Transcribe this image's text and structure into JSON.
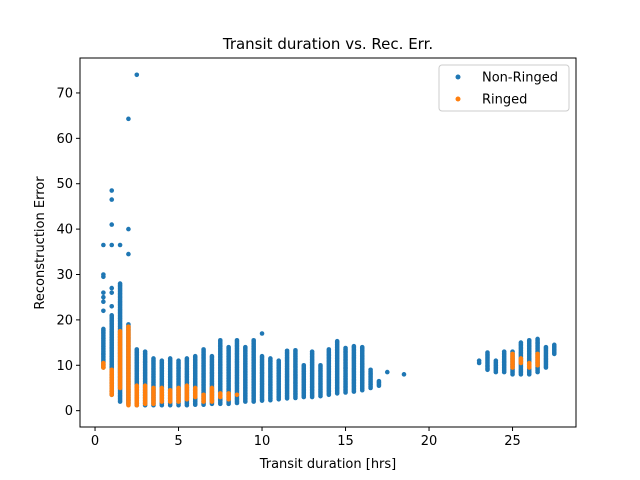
{
  "chart_data": {
    "type": "scatter",
    "title": "Transit duration vs. Rec. Err.",
    "xlabel": "Transit duration [hrs]",
    "ylabel": "Reconstruction Error",
    "xlim": [
      -0.9,
      28.8
    ],
    "ylim": [
      -3.6,
      77.7
    ],
    "xticks": [
      0,
      5,
      10,
      15,
      20,
      25
    ],
    "yticks": [
      0,
      10,
      20,
      30,
      40,
      50,
      60,
      70
    ],
    "grid": false,
    "legend_position": "top-right",
    "series": [
      {
        "name": "Non-Ringed",
        "color": "#1f77b4",
        "columns": [
          {
            "x": 0.5,
            "ymin": 9.5,
            "ymax": 18,
            "outliers": [
              22,
              24,
              25,
              26,
              29.5,
              30,
              36.5
            ]
          },
          {
            "x": 1.0,
            "ymin": 3.5,
            "ymax": 21,
            "outliers": [
              23,
              26,
              27,
              36.5,
              41,
              46.5,
              48.5
            ]
          },
          {
            "x": 1.5,
            "ymin": 2.0,
            "ymax": 28,
            "outliers": [
              36.5
            ]
          },
          {
            "x": 2.0,
            "ymin": 1.5,
            "ymax": 19,
            "outliers": [
              34.5,
              40,
              64.3
            ]
          },
          {
            "x": 2.5,
            "ymin": 1.2,
            "ymax": 13.5,
            "outliers": [
              74
            ]
          },
          {
            "x": 3.0,
            "ymin": 1.2,
            "ymax": 13,
            "outliers": []
          },
          {
            "x": 3.5,
            "ymin": 1.2,
            "ymax": 11.5,
            "outliers": []
          },
          {
            "x": 4.0,
            "ymin": 1.2,
            "ymax": 11,
            "outliers": []
          },
          {
            "x": 4.5,
            "ymin": 1.2,
            "ymax": 11.5,
            "outliers": []
          },
          {
            "x": 5.0,
            "ymin": 1.2,
            "ymax": 11,
            "outliers": []
          },
          {
            "x": 5.5,
            "ymin": 1.2,
            "ymax": 11.5,
            "outliers": []
          },
          {
            "x": 6.0,
            "ymin": 1.3,
            "ymax": 12,
            "outliers": []
          },
          {
            "x": 6.5,
            "ymin": 1.3,
            "ymax": 13.5,
            "outliers": []
          },
          {
            "x": 7.0,
            "ymin": 1.5,
            "ymax": 12,
            "outliers": []
          },
          {
            "x": 7.5,
            "ymin": 1.5,
            "ymax": 15.5,
            "outliers": []
          },
          {
            "x": 8.0,
            "ymin": 1.5,
            "ymax": 14,
            "outliers": []
          },
          {
            "x": 8.5,
            "ymin": 1.7,
            "ymax": 15.5,
            "outliers": []
          },
          {
            "x": 9.0,
            "ymin": 2.0,
            "ymax": 14,
            "outliers": []
          },
          {
            "x": 9.5,
            "ymin": 2.0,
            "ymax": 15.5,
            "outliers": []
          },
          {
            "x": 10.0,
            "ymin": 2.2,
            "ymax": 12,
            "outliers": [
              17
            ]
          },
          {
            "x": 10.5,
            "ymin": 2.3,
            "ymax": 11.5,
            "outliers": []
          },
          {
            "x": 11.0,
            "ymin": 2.5,
            "ymax": 11,
            "outliers": []
          },
          {
            "x": 11.5,
            "ymin": 2.7,
            "ymax": 13.2,
            "outliers": []
          },
          {
            "x": 12.0,
            "ymin": 2.8,
            "ymax": 13.3,
            "outliers": []
          },
          {
            "x": 12.5,
            "ymin": 3.0,
            "ymax": 10,
            "outliers": []
          },
          {
            "x": 13.0,
            "ymin": 3.0,
            "ymax": 13,
            "outliers": []
          },
          {
            "x": 13.5,
            "ymin": 3.2,
            "ymax": 10,
            "outliers": []
          },
          {
            "x": 14.0,
            "ymin": 3.5,
            "ymax": 13.5,
            "outliers": []
          },
          {
            "x": 14.5,
            "ymin": 3.8,
            "ymax": 15.3,
            "outliers": []
          },
          {
            "x": 15.0,
            "ymin": 4.0,
            "ymax": 13.8,
            "outliers": []
          },
          {
            "x": 15.5,
            "ymin": 4.2,
            "ymax": 14.2,
            "outliers": []
          },
          {
            "x": 16.0,
            "ymin": 4.5,
            "ymax": 14,
            "outliers": []
          },
          {
            "x": 16.5,
            "ymin": 5.0,
            "ymax": 9,
            "outliers": []
          },
          {
            "x": 17.0,
            "ymin": 5.5,
            "ymax": 6.5,
            "outliers": []
          },
          {
            "x": 17.5,
            "ymin": 8.5,
            "ymax": 8.5,
            "outliers": []
          },
          {
            "x": 18.5,
            "ymin": 8.0,
            "ymax": 8.0,
            "outliers": []
          },
          {
            "x": 23.0,
            "ymin": 10.5,
            "ymax": 11,
            "outliers": []
          },
          {
            "x": 23.5,
            "ymin": 9.0,
            "ymax": 12.8,
            "outliers": []
          },
          {
            "x": 24.0,
            "ymin": 8.5,
            "ymax": 11,
            "outliers": []
          },
          {
            "x": 24.5,
            "ymin": 8.5,
            "ymax": 13,
            "outliers": []
          },
          {
            "x": 25.0,
            "ymin": 8.0,
            "ymax": 13,
            "outliers": []
          },
          {
            "x": 25.5,
            "ymin": 8.0,
            "ymax": 15,
            "outliers": []
          },
          {
            "x": 26.0,
            "ymin": 8.0,
            "ymax": 15.5,
            "outliers": []
          },
          {
            "x": 26.5,
            "ymin": 8.5,
            "ymax": 15.8,
            "outliers": []
          },
          {
            "x": 27.0,
            "ymin": 9.5,
            "ymax": 14,
            "outliers": []
          },
          {
            "x": 27.5,
            "ymin": 12.5,
            "ymax": 14.5,
            "outliers": []
          }
        ]
      },
      {
        "name": "Ringed",
        "color": "#ff7f0e",
        "columns": [
          {
            "x": 0.5,
            "ymin": 9.5,
            "ymax": 10.5,
            "outliers": []
          },
          {
            "x": 1.0,
            "ymin": 3.5,
            "ymax": 9,
            "outliers": []
          },
          {
            "x": 1.5,
            "ymin": 5.0,
            "ymax": 17.5,
            "outliers": []
          },
          {
            "x": 2.0,
            "ymin": 1.2,
            "ymax": 18.5,
            "outliers": []
          },
          {
            "x": 2.5,
            "ymin": 1.2,
            "ymax": 5.5,
            "outliers": []
          },
          {
            "x": 3.0,
            "ymin": 1.5,
            "ymax": 5.5,
            "outliers": []
          },
          {
            "x": 3.5,
            "ymin": 1.5,
            "ymax": 5.0,
            "outliers": []
          },
          {
            "x": 4.0,
            "ymin": 2.0,
            "ymax": 5.0,
            "outliers": []
          },
          {
            "x": 4.5,
            "ymin": 2.0,
            "ymax": 4.5,
            "outliers": []
          },
          {
            "x": 5.0,
            "ymin": 2.0,
            "ymax": 5.0,
            "outliers": []
          },
          {
            "x": 5.5,
            "ymin": 2.5,
            "ymax": 5.5,
            "outliers": []
          },
          {
            "x": 6.0,
            "ymin": 3.0,
            "ymax": 5.0,
            "outliers": []
          },
          {
            "x": 6.5,
            "ymin": 2.0,
            "ymax": 3.5,
            "outliers": []
          },
          {
            "x": 7.0,
            "ymin": 2.0,
            "ymax": 5.0,
            "outliers": []
          },
          {
            "x": 7.5,
            "ymin": 3.0,
            "ymax": 3.8,
            "outliers": []
          },
          {
            "x": 8.0,
            "ymin": 2.5,
            "ymax": 3.8,
            "outliers": []
          },
          {
            "x": 8.5,
            "ymin": 3.5,
            "ymax": 3.5,
            "outliers": []
          },
          {
            "x": 25.0,
            "ymin": 9.5,
            "ymax": 12.5,
            "outliers": []
          },
          {
            "x": 25.5,
            "ymin": 10.5,
            "ymax": 11.5,
            "outliers": []
          },
          {
            "x": 26.0,
            "ymin": 9.5,
            "ymax": 10.5,
            "outliers": []
          },
          {
            "x": 26.5,
            "ymin": 10.0,
            "ymax": 12.5,
            "outliers": []
          }
        ]
      }
    ]
  }
}
